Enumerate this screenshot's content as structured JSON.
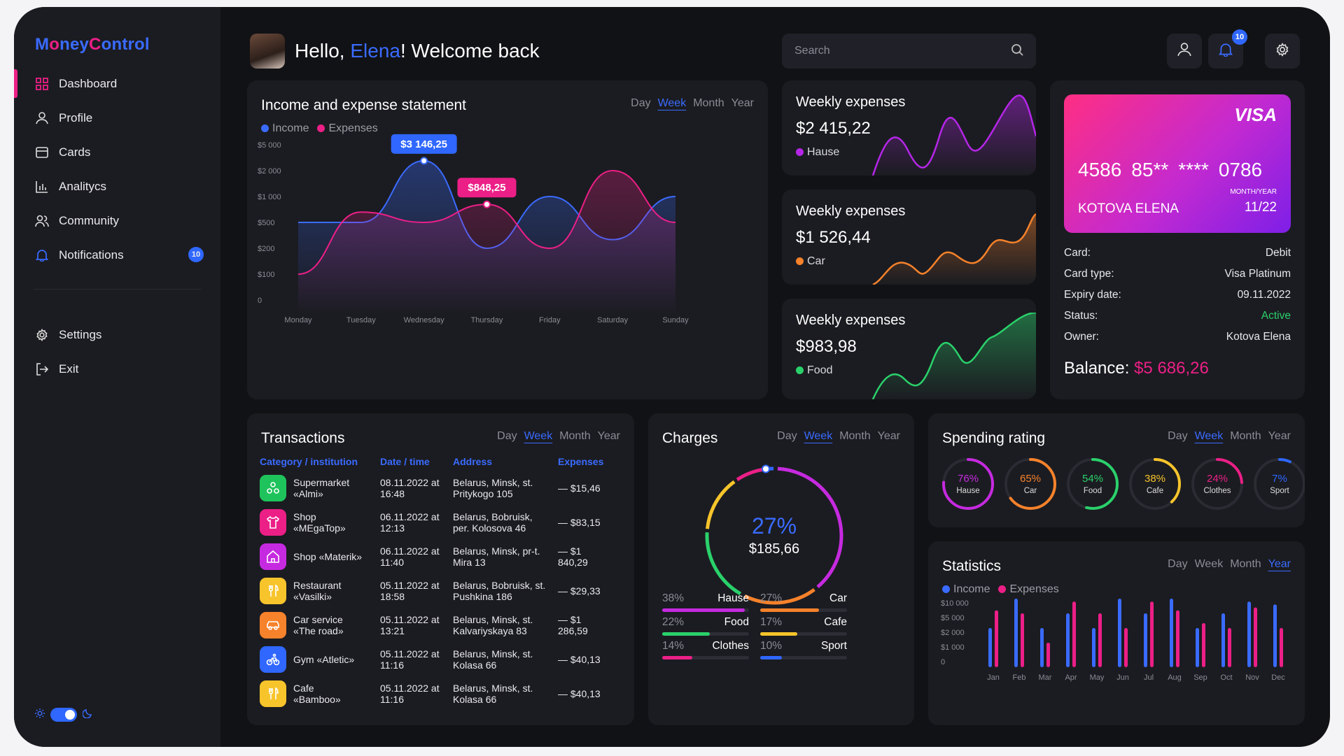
{
  "app": {
    "logo_a": "M",
    "logo_o": "o",
    "logo_b": "ney",
    "logo_c": "C",
    "logo_d": "ontrol",
    "logo_full": "MoneyControl"
  },
  "sidebar": {
    "items": [
      {
        "label": "Dashboard",
        "icon": "grid-icon",
        "active": true
      },
      {
        "label": "Profile",
        "icon": "user-icon"
      },
      {
        "label": "Cards",
        "icon": "card-icon"
      },
      {
        "label": "Analitycs",
        "icon": "chart-icon"
      },
      {
        "label": "Community",
        "icon": "users-icon"
      },
      {
        "label": "Notifications",
        "icon": "bell-icon",
        "badge": "10"
      }
    ],
    "bottom_items": [
      {
        "label": "Settings",
        "icon": "gear-icon"
      },
      {
        "label": "Exit",
        "icon": "exit-icon"
      }
    ]
  },
  "header": {
    "hello": "Hello, ",
    "name": "Elena",
    "rest": "! Welcome back",
    "search_placeholder": "Search",
    "notif_count": "10"
  },
  "periods": [
    "Day",
    "Week",
    "Month",
    "Year"
  ],
  "income_chart": {
    "title": "Income and expense statement",
    "legend_income": "Income",
    "legend_expenses": "Expenses",
    "colors": {
      "income": "#3a6bff",
      "expenses": "#ec1f87"
    },
    "tooltip_income": "$3 146,25",
    "tooltip_expenses": "$848,25"
  },
  "chart_data": [
    {
      "type": "line",
      "title": "Income and expense statement",
      "x": [
        "Monday",
        "Tuesday",
        "Wednesday",
        "Thursday",
        "Friday",
        "Saturday",
        "Sunday"
      ],
      "y_ticks": [
        "$5 000",
        "$2 000",
        "$1 000",
        "$500",
        "$200",
        "$100",
        "0"
      ],
      "series": [
        {
          "name": "Income",
          "values": [
            500,
            500,
            3146.25,
            200,
            1000,
            300,
            1000
          ]
        },
        {
          "name": "Expenses",
          "values": [
            100,
            700,
            500,
            848.25,
            200,
            2000,
            500
          ]
        }
      ],
      "annotations": [
        "$3 146,25",
        "$848,25"
      ]
    },
    {
      "type": "bar",
      "title": "Statistics",
      "categories": [
        "Jan",
        "Feb",
        "Mar",
        "Apr",
        "May",
        "Jun",
        "Jul",
        "Aug",
        "Sep",
        "Oct",
        "Nov",
        "Dec"
      ],
      "y_ticks": [
        "$10 000",
        "$5 000",
        "$2 000",
        "$1 000",
        "0"
      ],
      "series": [
        {
          "name": "Income",
          "values": [
            2000,
            10000,
            2000,
            5000,
            2000,
            10000,
            5000,
            10000,
            2000,
            5000,
            9000,
            8000
          ]
        },
        {
          "name": "Expenses",
          "values": [
            6000,
            5000,
            1000,
            9000,
            5000,
            2000,
            9000,
            6000,
            3000,
            2000,
            7000,
            2000
          ]
        }
      ]
    }
  ],
  "weekly": [
    {
      "title": "Weekly expenses",
      "amount": "$2 415,22",
      "category": "Hause",
      "color": "#b526e8"
    },
    {
      "title": "Weekly expenses",
      "amount": "$1 526,44",
      "category": "Car",
      "color": "#f6822b"
    },
    {
      "title": "Weekly expenses",
      "amount": "$983,98",
      "category": "Food",
      "color": "#2ad16b"
    }
  ],
  "visa": {
    "brand": "VISA",
    "number": [
      "4586",
      "85**",
      "****",
      "0786"
    ],
    "holder": "KOTOVA ELENA",
    "expiry_label": "MONTH/YEAR",
    "expiry": "11/22"
  },
  "card_info": [
    {
      "k": "Card:",
      "v": "Debit"
    },
    {
      "k": "Card type:",
      "v": "Visa Platinum"
    },
    {
      "k": "Expiry date:",
      "v": "09.11.2022"
    },
    {
      "k": "Status:",
      "v": "Active"
    },
    {
      "k": "Owner:",
      "v": "Kotova Elena"
    }
  ],
  "balance": {
    "label": "Balance:",
    "value": "$5 686,26"
  },
  "transactions": {
    "title": "Transactions",
    "headers": [
      "Category / institution",
      "Date / time",
      "Address",
      "Expenses"
    ],
    "rows": [
      {
        "name": "Supermarket «Almi»",
        "date": "08.11.2022 at 16:48",
        "addr": "Belarus, Minsk, st. Pritykogo 105",
        "amount": "— $15,46",
        "color": "#1fc35c",
        "icon": "basket-icon"
      },
      {
        "name": "Shop «MEgaTop»",
        "date": "06.11.2022 at 12:13",
        "addr": "Belarus, Bobruisk, per. Kolosova 46",
        "amount": "— $83,15",
        "color": "#ec1f87",
        "icon": "shirt-icon"
      },
      {
        "name": "Shop «Materik»",
        "date": "06.11.2022 at 11:40",
        "addr": "Belarus, Minsk, pr-t. Mira 13",
        "amount": "— $1 840,29",
        "color": "#c62ae0",
        "icon": "home-icon"
      },
      {
        "name": "Restaurant «Vasilki»",
        "date": "05.11.2022 at 18:58",
        "addr": "Belarus, Bobruisk, st. Pushkina 186",
        "amount": "— $29,33",
        "color": "#f7c42b",
        "icon": "cutlery-icon"
      },
      {
        "name": "Car service «The road»",
        "date": "05.11.2022 at 13:21",
        "addr": "Belarus, Minsk, st. Kalvariyskaya 83",
        "amount": "— $1 286,59",
        "color": "#f6822b",
        "icon": "car-icon"
      },
      {
        "name": "Gym «Atletic»",
        "date": "05.11.2022 at 11:16",
        "addr": "Belarus, Minsk, st. Kolasa 66",
        "amount": "— $40,13",
        "color": "#2f67ff",
        "icon": "bike-icon"
      },
      {
        "name": "Cafe «Bamboo»",
        "date": "05.11.2022 at 11:16",
        "addr": "Belarus, Minsk, st. Kolasa 66",
        "amount": "— $40,13",
        "color": "#f7c42b",
        "icon": "cutlery-icon"
      }
    ]
  },
  "charges": {
    "title": "Charges",
    "center_pct": "27%",
    "center_amt": "$185,66",
    "items": [
      {
        "pct": "38%",
        "name": "Hause",
        "value": 38,
        "color": "#c62ae0"
      },
      {
        "pct": "27%",
        "name": "Car",
        "value": 27,
        "color": "#f6822b"
      },
      {
        "pct": "22%",
        "name": "Food",
        "value": 22,
        "color": "#2ad16b"
      },
      {
        "pct": "17%",
        "name": "Cafe",
        "value": 17,
        "color": "#f7c42b"
      },
      {
        "pct": "14%",
        "name": "Clothes",
        "value": 14,
        "color": "#ec1f87"
      },
      {
        "pct": "10%",
        "name": "Sport",
        "value": 10,
        "color": "#2f67ff"
      }
    ]
  },
  "spending": {
    "title": "Spending rating",
    "items": [
      {
        "pct": "76%",
        "name": "Hause",
        "value": 76,
        "color": "#c62ae0"
      },
      {
        "pct": "65%",
        "name": "Car",
        "value": 65,
        "color": "#f6822b"
      },
      {
        "pct": "54%",
        "name": "Food",
        "value": 54,
        "color": "#2ad16b"
      },
      {
        "pct": "38%",
        "name": "Cafe",
        "value": 38,
        "color": "#f7c42b"
      },
      {
        "pct": "24%",
        "name": "Clothes",
        "value": 24,
        "color": "#ec1f87"
      },
      {
        "pct": "7%",
        "name": "Sport",
        "value": 7,
        "color": "#2f67ff"
      }
    ]
  },
  "statistics": {
    "title": "Statistics",
    "legend_income": "Income",
    "legend_expenses": "Expenses"
  }
}
